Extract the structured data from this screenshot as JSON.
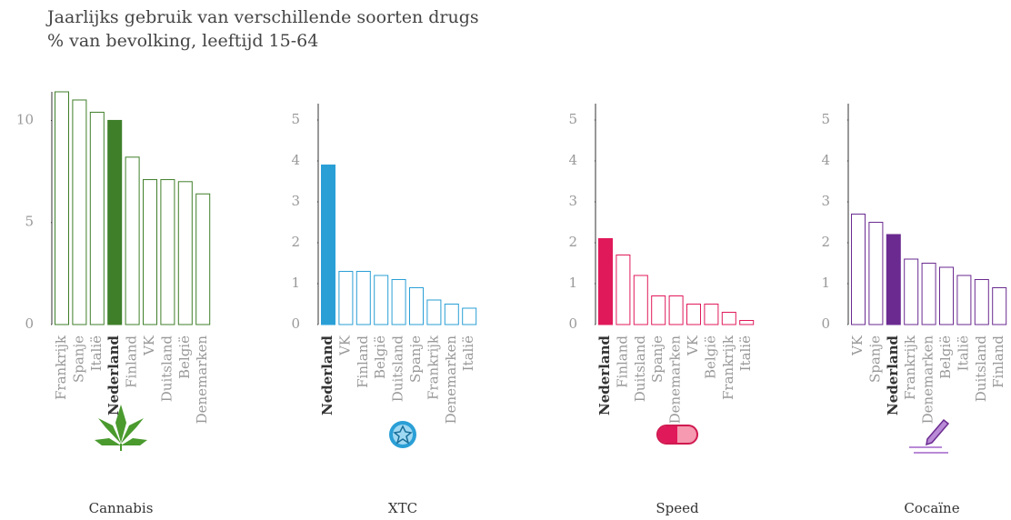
{
  "title": "Jaarlijks gebruik van verschillende soorten drugs",
  "subtitle": "% van bevolking, leeftijd 15-64",
  "chart_data": [
    {
      "type": "bar",
      "label": "Cannabis",
      "color": "#3f7f2a",
      "highlight": 3,
      "categories": [
        "Frankrijk",
        "Spanje",
        "Italië",
        "Nederland",
        "Finland",
        "VK",
        "Duitsland",
        "België",
        "Denemarken"
      ],
      "values": [
        11.4,
        11.0,
        10.4,
        10.0,
        8.2,
        7.1,
        7.1,
        7.0,
        6.4
      ],
      "ylim": [
        0,
        11.4
      ],
      "yticks": [
        0,
        5,
        10
      ]
    },
    {
      "type": "bar",
      "label": "XTC",
      "color": "#2a9fd6",
      "highlight": 0,
      "categories": [
        "Nederland",
        "VK",
        "Finland",
        "België",
        "Duitsland",
        "Spanje",
        "Frankrijk",
        "Denemarken",
        "Italië"
      ],
      "values": [
        3.9,
        1.3,
        1.3,
        1.2,
        1.1,
        0.9,
        0.6,
        0.5,
        0.4
      ],
      "ylim": [
        0,
        5.4
      ],
      "yticks": [
        0,
        1,
        2,
        3,
        4,
        5
      ]
    },
    {
      "type": "bar",
      "label": "Speed",
      "color": "#e0195a",
      "highlight": 0,
      "categories": [
        "Nederland",
        "Finland",
        "Duitsland",
        "Spanje",
        "Denemarken",
        "VK",
        "België",
        "Frankrijk",
        "Italië"
      ],
      "values": [
        2.1,
        1.7,
        1.2,
        0.7,
        0.7,
        0.5,
        0.5,
        0.3,
        0.1
      ],
      "ylim": [
        0,
        5.4
      ],
      "yticks": [
        0,
        1,
        2,
        3,
        4,
        5
      ]
    },
    {
      "type": "bar",
      "label": "Cocaïne",
      "color": "#6a2a90",
      "highlight": 2,
      "categories": [
        "VK",
        "Spanje",
        "Nederland",
        "Frankrijk",
        "Denemarken",
        "België",
        "Italië",
        "Duitsland",
        "Finland"
      ],
      "values": [
        2.7,
        2.5,
        2.2,
        1.6,
        1.5,
        1.4,
        1.2,
        1.1,
        0.9
      ],
      "ylim": [
        0,
        5.4
      ],
      "yticks": [
        0,
        1,
        2,
        3,
        4,
        5
      ]
    }
  ]
}
